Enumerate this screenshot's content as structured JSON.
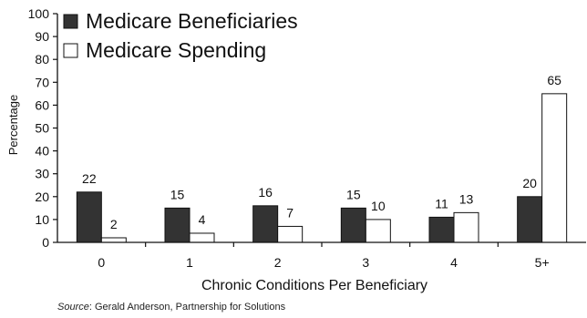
{
  "chart_data": {
    "type": "bar",
    "categories": [
      "0",
      "1",
      "2",
      "3",
      "4",
      "5+"
    ],
    "series": [
      {
        "name": "Medicare Beneficiaries",
        "values": [
          22,
          15,
          16,
          15,
          11,
          20
        ],
        "color": "#333333"
      },
      {
        "name": "Medicare Spending",
        "values": [
          2,
          4,
          7,
          10,
          13,
          65
        ],
        "color": "#ffffff"
      }
    ],
    "xlabel": "Chronic Conditions Per Beneficiary",
    "ylabel": "Percentage",
    "ylim": [
      0,
      100
    ],
    "yticks": [
      "0",
      "10",
      "20",
      "30",
      "40",
      "50",
      "60",
      "70",
      "80",
      "90",
      "100"
    ],
    "legend_position": "top-left",
    "grid": false
  },
  "source": {
    "label": "Source",
    "text": "Gerald Anderson, Partnership for Solutions"
  }
}
